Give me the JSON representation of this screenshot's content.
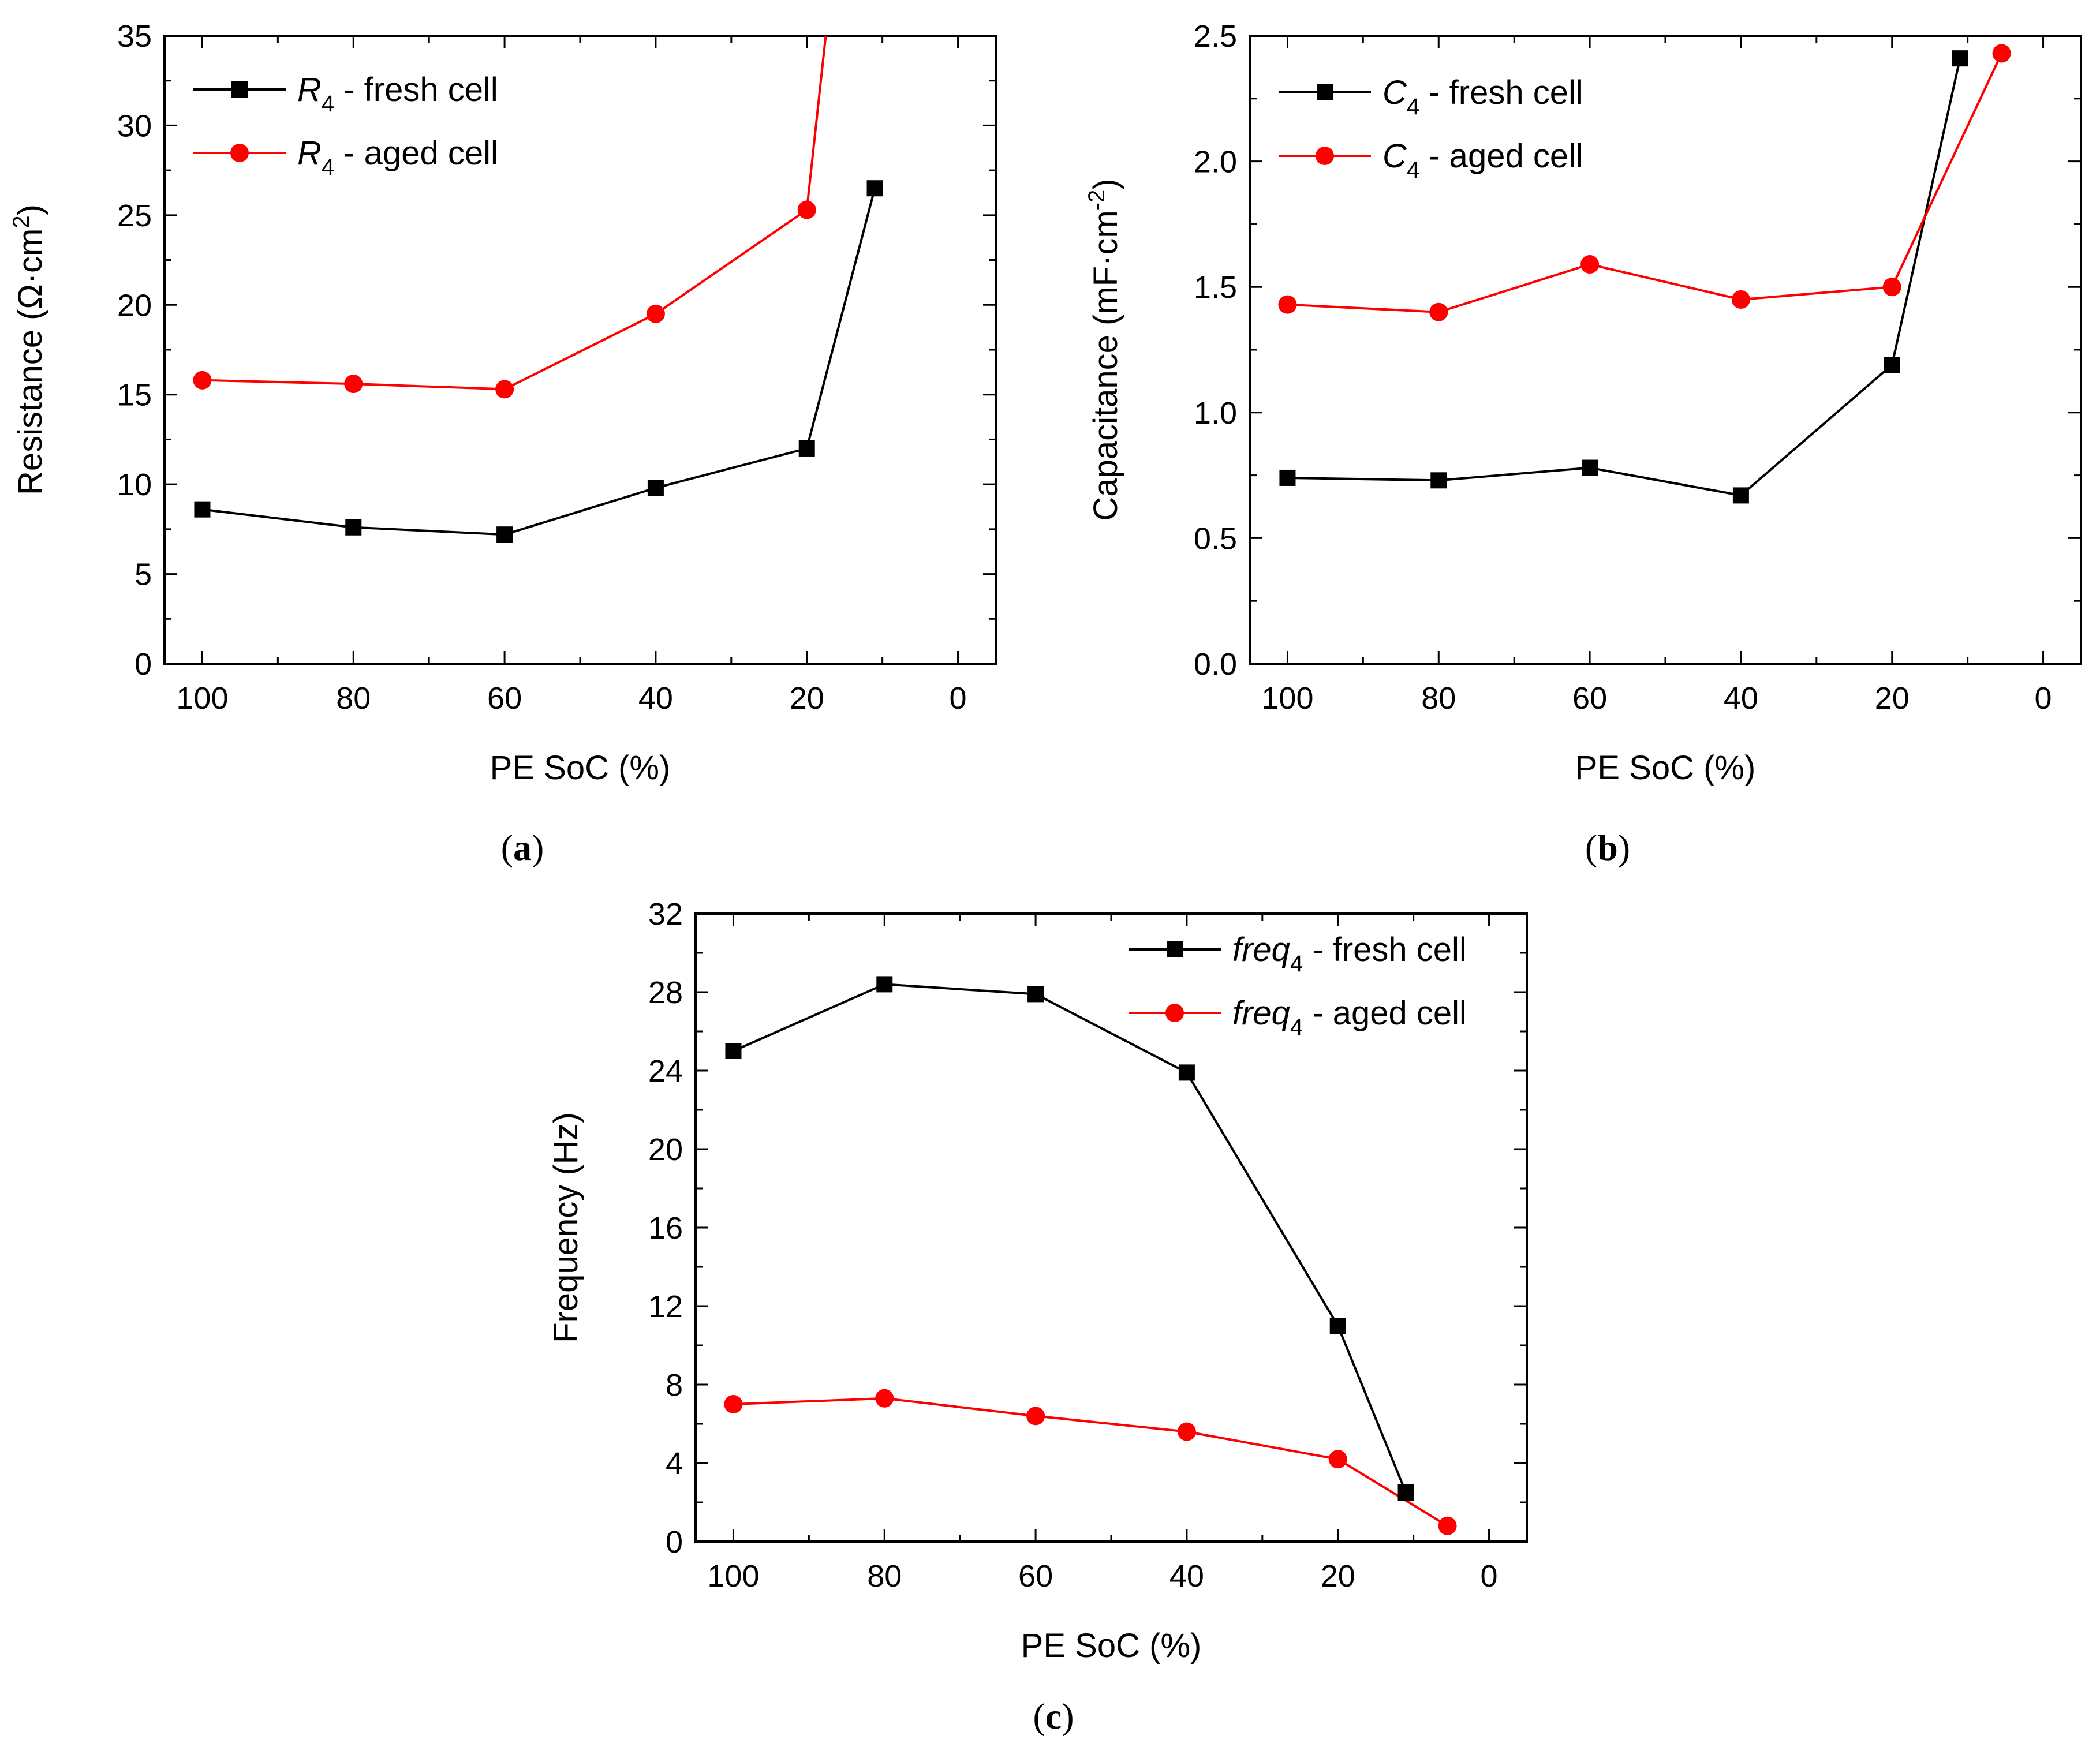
{
  "colors": {
    "fresh": "#000000",
    "aged": "#ff0000"
  },
  "chart_data": [
    {
      "id": "a",
      "type": "line",
      "panel_label": [
        "(",
        "a",
        ")"
      ],
      "xlabel": "PE SoC (%)",
      "ylabel": [
        "Resistance (Ω·cm",
        "2",
        ")"
      ],
      "xlim": [
        105,
        -5
      ],
      "ylim": [
        0,
        35
      ],
      "x_ticks": [
        100,
        80,
        60,
        40,
        20,
        0
      ],
      "y_ticks": [
        0,
        5,
        10,
        15,
        20,
        25,
        30,
        35
      ],
      "y_tick_labels": [
        "0",
        "5",
        "10",
        "15",
        "20",
        "25",
        "30",
        "35"
      ],
      "legend_position": "top-left",
      "series": [
        {
          "name": [
            "R",
            "4",
            " - fresh cell"
          ],
          "color": "#000000",
          "marker": "square",
          "x": [
            100,
            80,
            60,
            40,
            20,
            11
          ],
          "y": [
            8.6,
            7.6,
            7.2,
            9.8,
            12.0,
            26.5
          ]
        },
        {
          "name": [
            "R",
            "4",
            " - aged cell"
          ],
          "color": "#ff0000",
          "marker": "circle",
          "x": [
            100,
            80,
            60,
            40,
            20,
            17.5
          ],
          "y": [
            15.8,
            15.6,
            15.3,
            19.5,
            25.3,
            35
          ]
        }
      ]
    },
    {
      "id": "b",
      "type": "line",
      "panel_label": [
        "(",
        "b",
        ")"
      ],
      "xlabel": "PE SoC (%)",
      "ylabel": [
        "Capacitance (mF·cm",
        "-2",
        ")"
      ],
      "xlim": [
        105,
        -5
      ],
      "ylim": [
        0,
        2.5
      ],
      "x_ticks": [
        100,
        80,
        60,
        40,
        20,
        0
      ],
      "y_ticks": [
        0,
        0.5,
        1.0,
        1.5,
        2.0,
        2.5
      ],
      "y_tick_labels": [
        "0.0",
        "0.5",
        "1.0",
        "1.5",
        "2.0",
        "2.5"
      ],
      "legend_position": "top-left",
      "series": [
        {
          "name": [
            "C",
            "4",
            " - fresh cell"
          ],
          "color": "#000000",
          "marker": "square",
          "x": [
            100,
            80,
            60,
            40,
            20,
            11
          ],
          "y": [
            0.74,
            0.73,
            0.78,
            0.67,
            1.19,
            2.41
          ]
        },
        {
          "name": [
            "C",
            "4",
            " - aged cell"
          ],
          "color": "#ff0000",
          "marker": "circle",
          "x": [
            100,
            80,
            60,
            40,
            20,
            5.5
          ],
          "y": [
            1.43,
            1.4,
            1.59,
            1.45,
            1.5,
            2.43
          ]
        }
      ]
    },
    {
      "id": "c",
      "type": "line",
      "panel_label": [
        "(",
        "c",
        ")"
      ],
      "xlabel": "PE SoC (%)",
      "ylabel": [
        "Frequency (Hz)",
        "",
        ""
      ],
      "xlim": [
        105,
        -5
      ],
      "ylim": [
        0,
        32
      ],
      "x_ticks": [
        100,
        80,
        60,
        40,
        20,
        0
      ],
      "y_ticks": [
        0,
        4,
        8,
        12,
        16,
        20,
        24,
        28,
        32
      ],
      "y_tick_labels": [
        "0",
        "4",
        "8",
        "12",
        "16",
        "20",
        "24",
        "28",
        "32"
      ],
      "legend_position": "top-right",
      "series": [
        {
          "name": [
            "freq",
            "4",
            " - fresh cell"
          ],
          "color": "#000000",
          "marker": "square",
          "x": [
            100,
            80,
            60,
            40,
            20,
            11
          ],
          "y": [
            25.0,
            28.4,
            27.9,
            23.9,
            11.0,
            2.5
          ]
        },
        {
          "name": [
            "freq",
            "4",
            " - aged cell"
          ],
          "color": "#ff0000",
          "marker": "circle",
          "x": [
            100,
            80,
            60,
            40,
            20,
            5.5
          ],
          "y": [
            7.0,
            7.3,
            6.4,
            5.6,
            4.2,
            0.8
          ]
        }
      ]
    }
  ]
}
